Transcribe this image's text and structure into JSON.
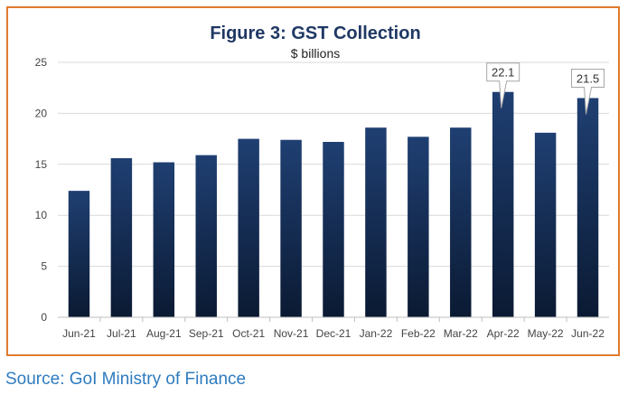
{
  "chart_data": {
    "type": "bar",
    "title": "Figure 3: GST Collection",
    "subtitle": "$ billions",
    "categories": [
      "Jun-21",
      "Jul-21",
      "Aug-21",
      "Sep-21",
      "Oct-21",
      "Nov-21",
      "Dec-21",
      "Jan-22",
      "Feb-22",
      "Mar-22",
      "Apr-22",
      "May-22",
      "Jun-22"
    ],
    "values": [
      12.4,
      15.6,
      15.2,
      15.9,
      17.5,
      17.4,
      17.2,
      18.6,
      17.7,
      18.6,
      22.1,
      18.1,
      21.5
    ],
    "data_labels": [
      {
        "category": "Apr-22",
        "text": "22.1"
      },
      {
        "category": "Jun-22",
        "text": "21.5"
      }
    ],
    "ylim": [
      0,
      25
    ],
    "yticks": [
      "0",
      "5",
      "10",
      "15",
      "20",
      "25"
    ],
    "grid": true,
    "legend": "none",
    "colors": {
      "bar_top": "#1f3f72",
      "bar_bottom": "#0b1a33",
      "frame": "#e07b2e",
      "title": "#1f3864",
      "source": "#2e7bbf"
    }
  },
  "source_text": "Source: GoI Ministry of Finance"
}
